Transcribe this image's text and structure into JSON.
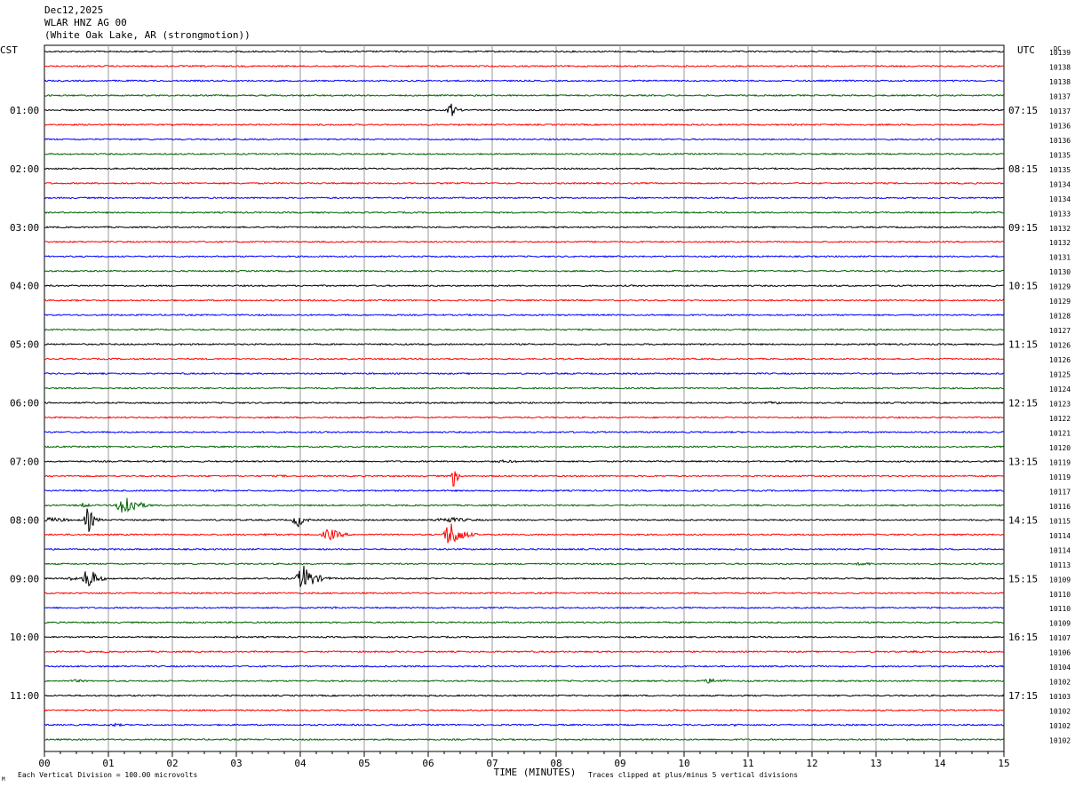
{
  "header": {
    "date": "Dec12,2025",
    "station": "WLAR HNZ AG 00",
    "location": "(White Oak Lake, AR (strongmotion))"
  },
  "labels": {
    "left_tz": "CST",
    "right_tz": "UTC",
    "dc": "DC",
    "x_axis": "TIME (MINUTES)",
    "footer_left": "Each Vertical Division =  100.00 microvolts",
    "footer_right": "Traces clipped at plus/minus 5 vertical divisions",
    "footer_mark": "M"
  },
  "colors": {
    "trace_cycle": [
      "#000000",
      "#ff0000",
      "#0000ff",
      "#006400"
    ],
    "grid": "#999999"
  },
  "chart_data": {
    "type": "line",
    "title": "Dec12,2025 WLAR HNZ AG 00 (White Oak Lake, AR (strongmotion))",
    "xlabel": "TIME (MINUTES)",
    "xlim": [
      0,
      15
    ],
    "x_ticks": [
      "00",
      "01",
      "02",
      "03",
      "04",
      "05",
      "06",
      "07",
      "08",
      "09",
      "10",
      "11",
      "12",
      "13",
      "14",
      "15"
    ],
    "left_hour_labels": [
      "01:00",
      "02:00",
      "03:00",
      "04:00",
      "05:00",
      "06:00",
      "07:00",
      "08:00",
      "09:00",
      "10:00",
      "11:00"
    ],
    "right_hour_labels": [
      "07:15",
      "08:15",
      "09:15",
      "10:15",
      "11:15",
      "12:15",
      "13:15",
      "14:15",
      "15:15",
      "16:15",
      "17:15"
    ],
    "hour_label_trace_index": [
      4,
      8,
      12,
      16,
      20,
      24,
      28,
      32,
      36,
      40,
      44
    ],
    "dc_offsets": [
      10139,
      10138,
      10138,
      10137,
      10137,
      10136,
      10136,
      10135,
      10135,
      10134,
      10134,
      10133,
      10132,
      10132,
      10131,
      10130,
      10129,
      10129,
      10128,
      10127,
      10126,
      10126,
      10125,
      10124,
      10123,
      10122,
      10121,
      10120,
      10119,
      10119,
      10117,
      10116,
      10115,
      10114,
      10114,
      10113,
      10109,
      10110,
      10110,
      10109,
      10107,
      10106,
      10104,
      10102,
      10103,
      10102,
      10102,
      10102
    ],
    "trace_minutes": 15,
    "events": [
      {
        "trace": 4,
        "minute": 6.35,
        "amplitude": 3.0,
        "duration": 0.25
      },
      {
        "trace": 4,
        "minute": 5.1,
        "amplitude": 0.35,
        "duration": 0.3
      },
      {
        "trace": 24,
        "minute": 11.4,
        "amplitude": 0.5,
        "duration": 1.0
      },
      {
        "trace": 28,
        "minute": 7.2,
        "amplitude": 0.5,
        "duration": 1.5
      },
      {
        "trace": 29,
        "minute": 3.7,
        "amplitude": 0.4,
        "duration": 0.8
      },
      {
        "trace": 29,
        "minute": 6.4,
        "amplitude": 5.0,
        "duration": 0.15
      },
      {
        "trace": 31,
        "minute": 1.25,
        "amplitude": 5.0,
        "duration": 0.5
      },
      {
        "trace": 31,
        "minute": 0.6,
        "amplitude": 0.9,
        "duration": 0.4
      },
      {
        "trace": 32,
        "minute": 0.1,
        "amplitude": 0.9,
        "duration": 1.1
      },
      {
        "trace": 32,
        "minute": 0.68,
        "amplitude": 5.0,
        "duration": 0.25
      },
      {
        "trace": 32,
        "minute": 6.3,
        "amplitude": 1.0,
        "duration": 1.2
      },
      {
        "trace": 32,
        "minute": 3.95,
        "amplitude": 3.0,
        "duration": 0.3
      },
      {
        "trace": 33,
        "minute": 4.45,
        "amplitude": 2.5,
        "duration": 0.5
      },
      {
        "trace": 33,
        "minute": 6.35,
        "amplitude": 5.0,
        "duration": 0.5
      },
      {
        "trace": 33,
        "minute": 3.5,
        "amplitude": 0.5,
        "duration": 0.8
      },
      {
        "trace": 33,
        "minute": 7.8,
        "amplitude": 0.4,
        "duration": 0.8
      },
      {
        "trace": 35,
        "minute": 12.8,
        "amplitude": 0.6,
        "duration": 1.0
      },
      {
        "trace": 36,
        "minute": 0.68,
        "amplitude": 5.0,
        "duration": 0.35
      },
      {
        "trace": 36,
        "minute": 4.05,
        "amplitude": 5.0,
        "duration": 0.5
      },
      {
        "trace": 36,
        "minute": 0.4,
        "amplitude": 1.0,
        "duration": 0.3
      },
      {
        "trace": 38,
        "minute": 4.5,
        "amplitude": 0.5,
        "duration": 0.7
      },
      {
        "trace": 40,
        "minute": 3.0,
        "amplitude": 0.4,
        "duration": 0.8
      },
      {
        "trace": 41,
        "minute": 13.6,
        "amplitude": 0.4,
        "duration": 0.8
      },
      {
        "trace": 43,
        "minute": 0.5,
        "amplitude": 0.6,
        "duration": 0.7
      },
      {
        "trace": 43,
        "minute": 10.4,
        "amplitude": 0.9,
        "duration": 0.9
      },
      {
        "trace": 46,
        "minute": 1.1,
        "amplitude": 0.6,
        "duration": 0.6
      },
      {
        "trace": 46,
        "minute": 10.8,
        "amplitude": 0.5,
        "duration": 0.4
      },
      {
        "trace": 47,
        "minute": 13.5,
        "amplitude": 0.6,
        "duration": 0.6
      }
    ]
  }
}
